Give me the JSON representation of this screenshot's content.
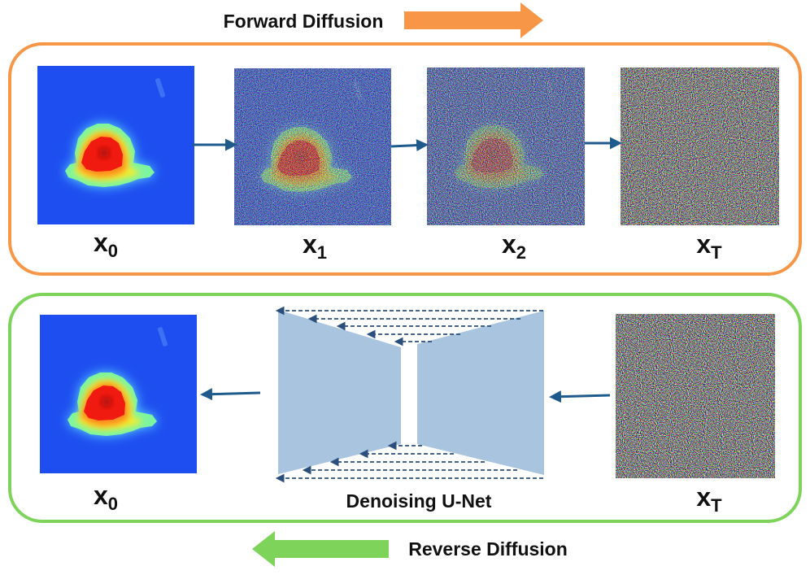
{
  "forward": {
    "title": "Forward Diffusion",
    "border_color": "#f79646",
    "arrow_color": "#f79646",
    "labels": [
      {
        "main": "x",
        "sub": "0"
      },
      {
        "main": "x",
        "sub": "1"
      },
      {
        "main": "x",
        "sub": "2"
      },
      {
        "main": "x",
        "sub": "T"
      }
    ]
  },
  "reverse": {
    "title": "Reverse Diffusion",
    "border_color": "#7ed35a",
    "arrow_color": "#7ed35a",
    "input_label": {
      "main": "x",
      "sub": "T"
    },
    "output_label": {
      "main": "x",
      "sub": "0"
    },
    "unet_label": "Denoising U-Net"
  },
  "colors": {
    "connector_arrow": "#1f5a8c",
    "unet_fill": "#a8c4de",
    "skip_arrow": "#2a4f7c",
    "heatmap_background": "#1e4ef0"
  }
}
